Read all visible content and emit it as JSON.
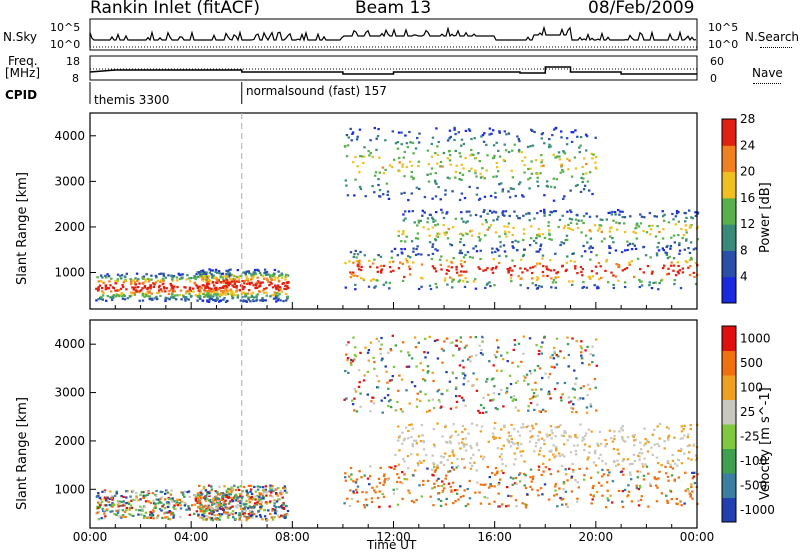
{
  "header": {
    "station": "Rankin Inlet (fitACF)",
    "beam": "Beam 13",
    "date": "08/Feb/2009"
  },
  "panels": {
    "nsky": {
      "label": "N.Sky",
      "tick_top": "10^5",
      "tick_bottom": "10^0"
    },
    "nsearch": {
      "label": "N.Search",
      "tick_top": "10^5",
      "tick_bottom": "10^0"
    },
    "freq": {
      "label_line1": "Freq.",
      "label_line2": "[MHz]",
      "tick_top": "18",
      "tick_bottom": "8"
    },
    "nave": {
      "label": "Nave",
      "tick_top": "60",
      "tick_bottom": "0"
    },
    "cpid": {
      "label": "CPID",
      "mode1": "themis 3300",
      "mode2": "normalsound (fast) 157"
    }
  },
  "chart_data": [
    {
      "type": "heatmap",
      "ylabel": "Slant Range [km]",
      "xlabel": "",
      "yticks": [
        "1000",
        "2000",
        "3000",
        "4000"
      ],
      "ylim": [
        200,
        4500
      ],
      "xlim": [
        "00:00",
        "24:00"
      ],
      "colorbar": {
        "label": "Power [dB]",
        "ticks": [
          "4",
          "8",
          "12",
          "16",
          "20",
          "24",
          "28"
        ],
        "colors": [
          "#1a28e0",
          "#2a4fa8",
          "#3a8a7a",
          "#57b04a",
          "#f0c020",
          "#f08020",
          "#e02010"
        ]
      }
    },
    {
      "type": "heatmap",
      "ylabel": "Slant Range [km]",
      "xlabel": "Time UT",
      "yticks": [
        "1000",
        "2000",
        "3000",
        "4000"
      ],
      "ylim": [
        200,
        4500
      ],
      "xticks": [
        "00:00",
        "04:00",
        "08:00",
        "12:00",
        "16:00",
        "20:00",
        "00:00"
      ],
      "xlim": [
        "00:00",
        "24:00"
      ],
      "colorbar": {
        "label": "Velocity [m s^-1]",
        "ticks": [
          "1000",
          "500",
          "100",
          "25",
          "-25",
          "-100",
          "-500",
          "-1000"
        ],
        "colors": [
          "#2040b0",
          "#3a7fa0",
          "#3fa050",
          "#80c840",
          "#c8c8c0",
          "#f0a020",
          "#f07010",
          "#e01010"
        ]
      }
    }
  ],
  "bands": [
    {
      "t0": 0.2,
      "t1": 5.6,
      "r0": 400,
      "r1": 1000
    },
    {
      "t0": 4.2,
      "t1": 7.8,
      "r0": 380,
      "r1": 1100
    },
    {
      "t0": 10.0,
      "t1": 24.0,
      "r0": 650,
      "r1": 1500
    },
    {
      "t0": 12.0,
      "t1": 24.0,
      "r0": 1500,
      "r1": 2400
    },
    {
      "t0": 10.0,
      "t1": 20.0,
      "r0": 2600,
      "r1": 4200
    }
  ]
}
